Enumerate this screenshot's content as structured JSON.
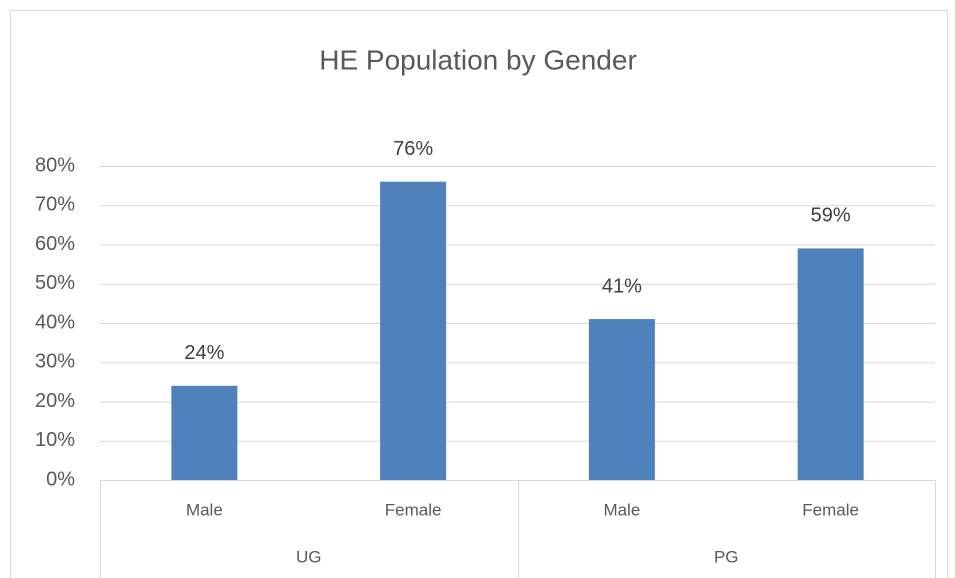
{
  "chart_data": {
    "type": "bar",
    "title": "HE Population by Gender",
    "categories": [
      "Male",
      "Female",
      "Male",
      "Female"
    ],
    "groups": [
      "UG",
      "PG"
    ],
    "values": [
      24,
      76,
      41,
      59
    ],
    "value_labels": [
      "24%",
      "76%",
      "41%",
      "59%"
    ],
    "color": "#4f81bd",
    "ylim": [
      0,
      80
    ],
    "yticks": [
      {
        "value": 0,
        "label": "0%"
      },
      {
        "value": 10,
        "label": "10%"
      },
      {
        "value": 20,
        "label": "20%"
      },
      {
        "value": 30,
        "label": "30%"
      },
      {
        "value": 40,
        "label": "40%"
      },
      {
        "value": 50,
        "label": "50%"
      },
      {
        "value": 60,
        "label": "60%"
      },
      {
        "value": 70,
        "label": "70%"
      },
      {
        "value": 80,
        "label": "80%"
      }
    ],
    "grid": true
  }
}
